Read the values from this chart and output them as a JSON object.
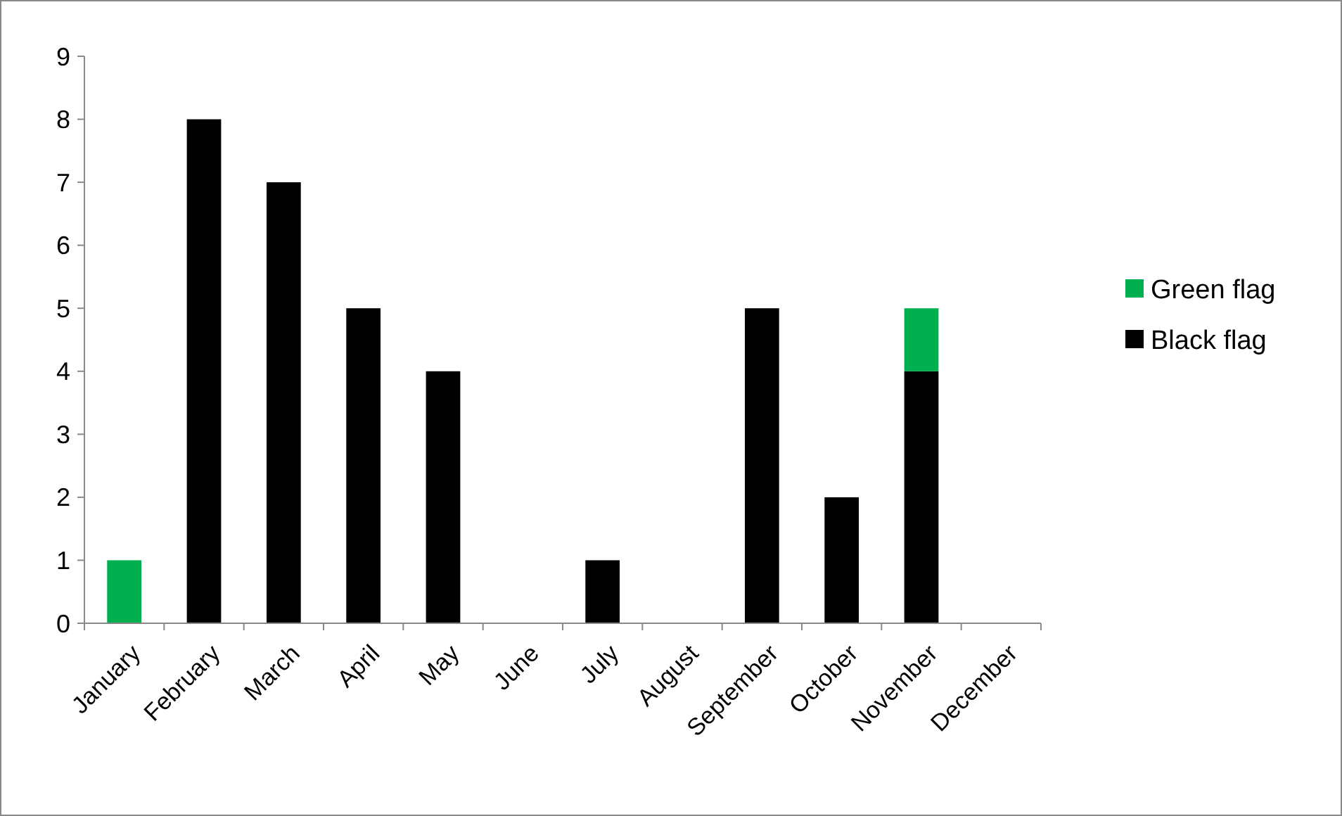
{
  "chart_data": {
    "type": "bar",
    "stacked": true,
    "categories": [
      "January",
      "February",
      "March",
      "April",
      "May",
      "June",
      "July",
      "August",
      "September",
      "October",
      "November",
      "December"
    ],
    "series": [
      {
        "name": "Black flag",
        "color": "#000000",
        "values": [
          0,
          8,
          7,
          5,
          4,
          0,
          1,
          0,
          5,
          2,
          4,
          0
        ]
      },
      {
        "name": "Green flag",
        "color": "#00b050",
        "values": [
          1,
          0,
          0,
          0,
          0,
          0,
          0,
          0,
          0,
          0,
          1,
          0
        ]
      }
    ],
    "ylim": [
      0,
      9
    ],
    "yticks": [
      0,
      1,
      2,
      3,
      4,
      5,
      6,
      7,
      8,
      9
    ],
    "grid": false,
    "legend": "right"
  }
}
